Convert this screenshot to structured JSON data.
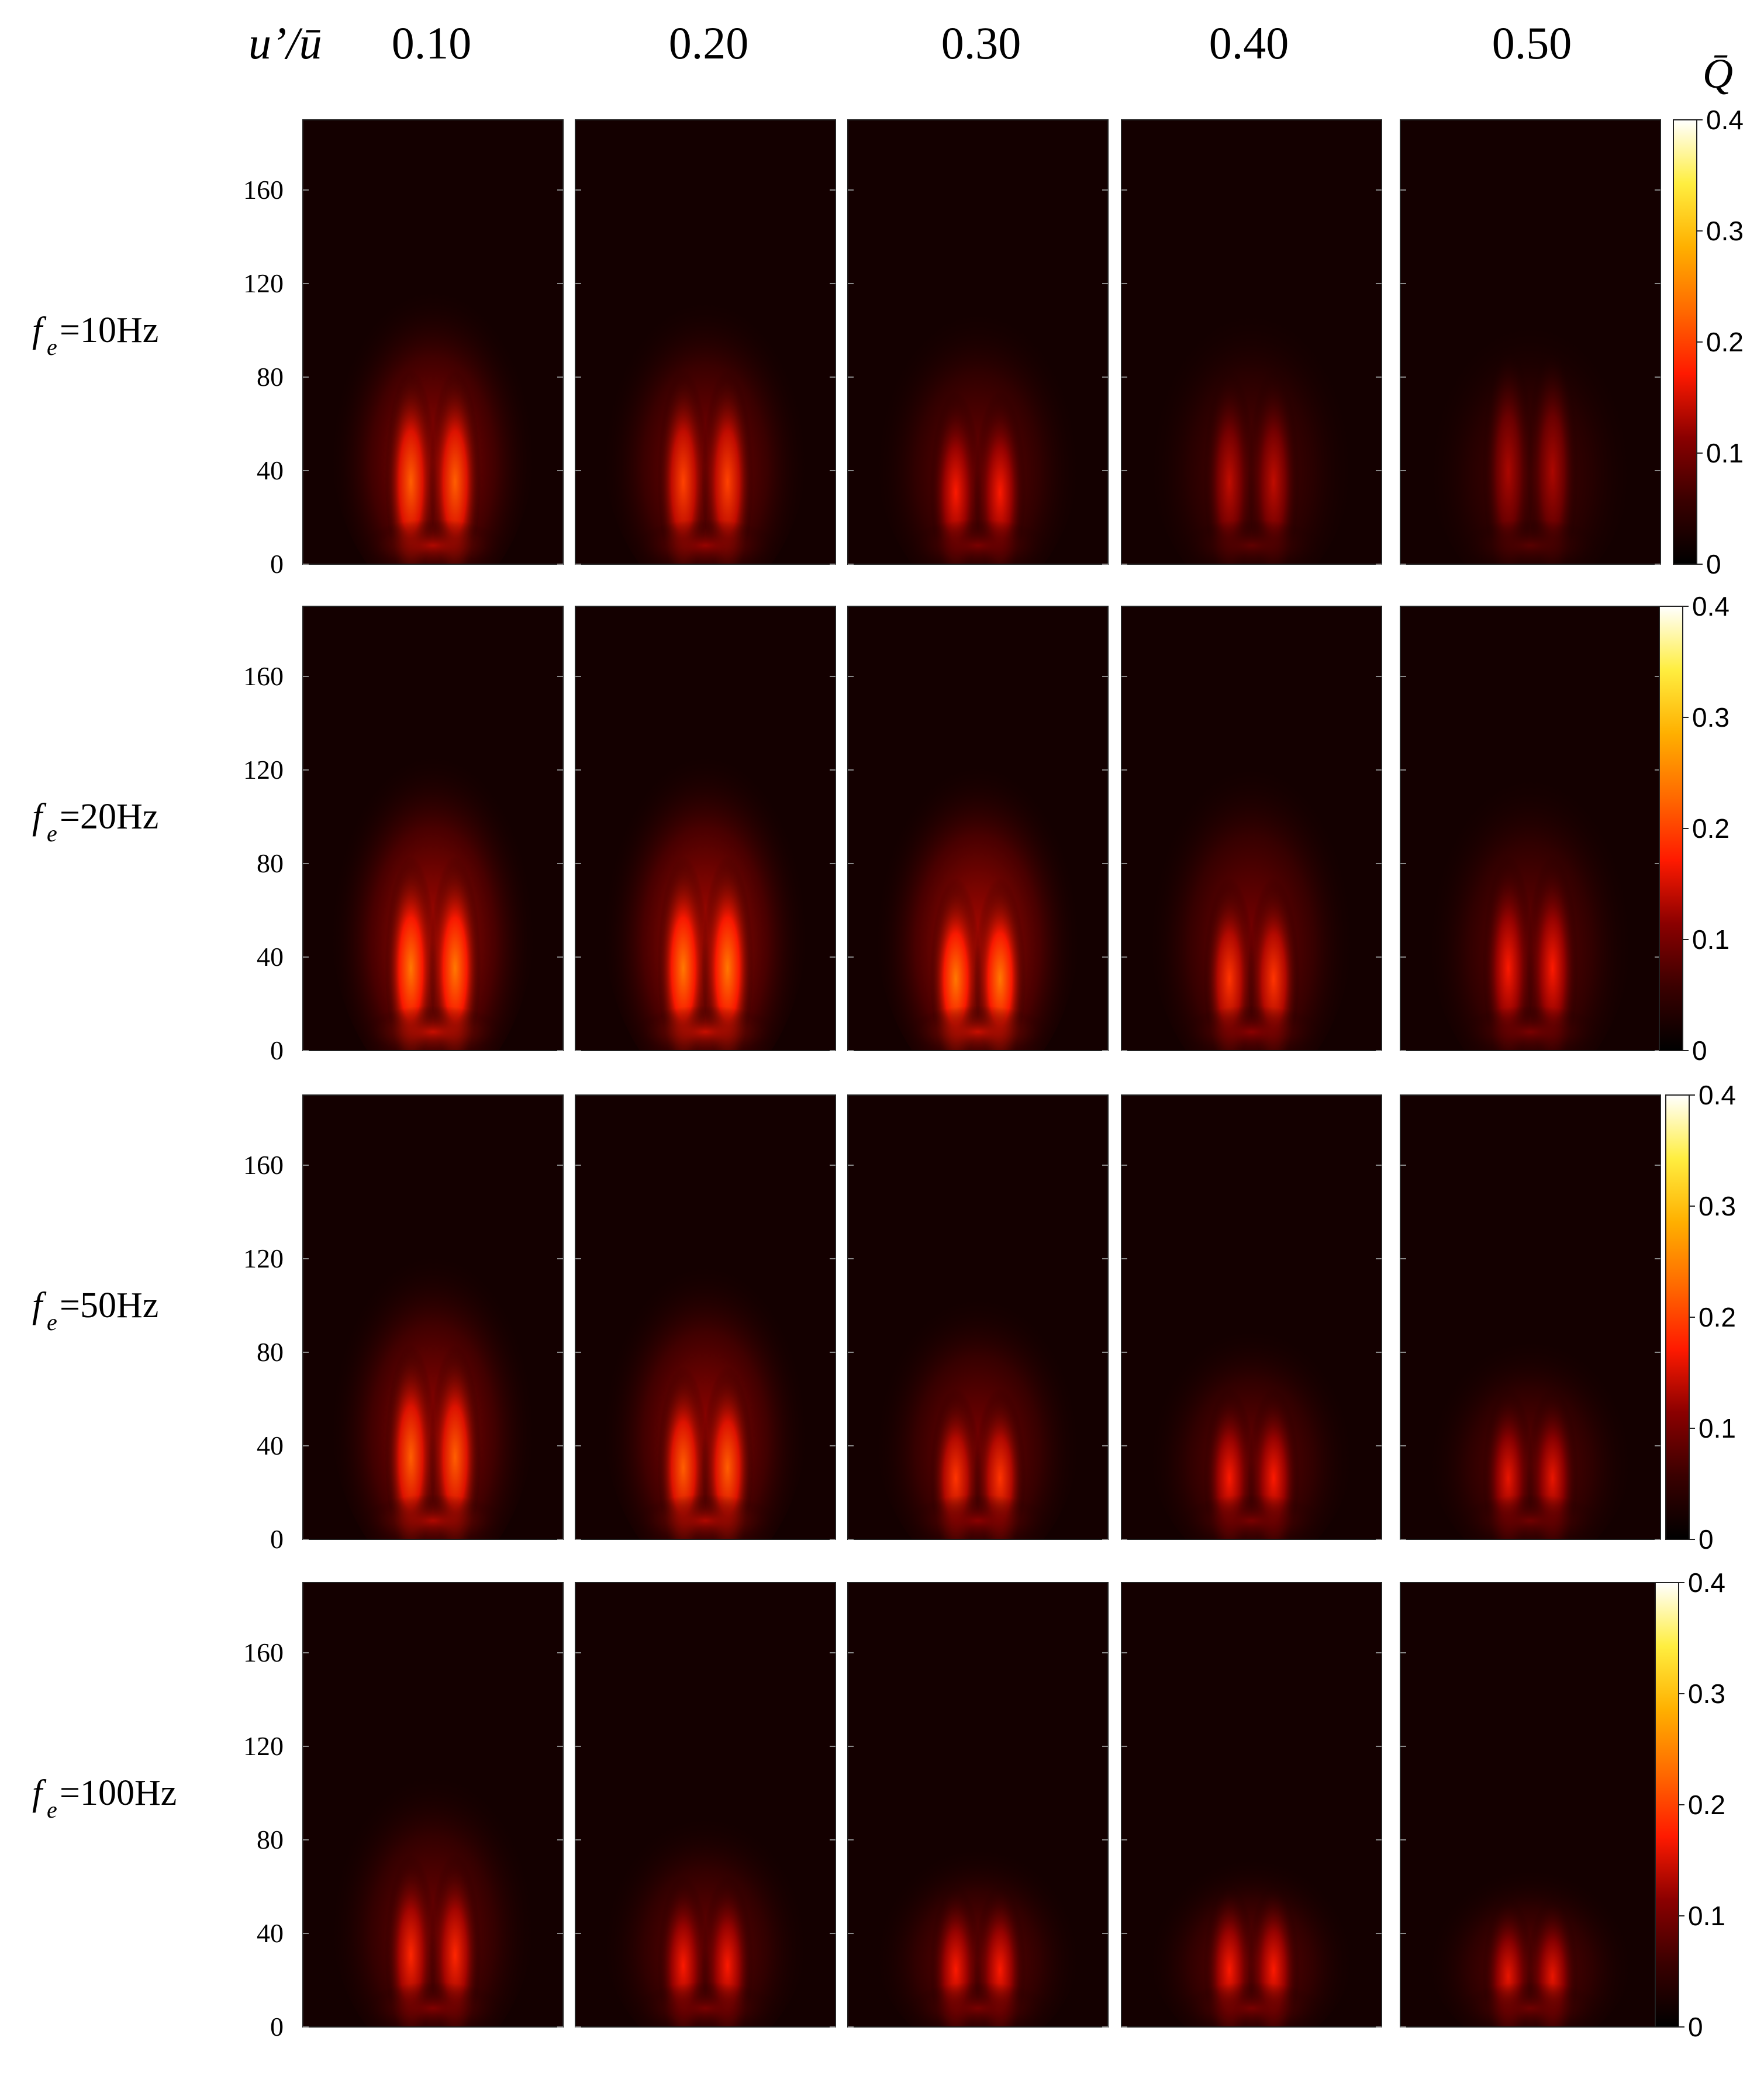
{
  "header": {
    "param_label": "u’/ū",
    "colorbar_title": "Q̄"
  },
  "chart_data": {
    "type": "heatmap",
    "title": "",
    "column_parameter": "u’/ū",
    "columns": [
      "0.10",
      "0.20",
      "0.30",
      "0.40",
      "0.50"
    ],
    "row_labels": [
      {
        "prefix": "f",
        "subscript": "e",
        "value": "=10Hz"
      },
      {
        "prefix": "f",
        "subscript": "e",
        "value": "=20Hz"
      },
      {
        "prefix": "f",
        "subscript": "e",
        "value": "=50Hz"
      },
      {
        "prefix": "f",
        "subscript": "e",
        "value": "=100Hz"
      }
    ],
    "y_axis": {
      "ticks": [
        "0",
        "40",
        "80",
        "120",
        "160"
      ],
      "ylim": [
        0,
        190
      ]
    },
    "colorbar": {
      "label": "Q̄",
      "ticks": [
        "0",
        "0.1",
        "0.2",
        "0.3",
        "0.4"
      ],
      "range": [
        0,
        0.4
      ],
      "colors": [
        "#000000",
        "#3a0000",
        "#8b0000",
        "#ff1a00",
        "#ff6a00",
        "#ffb000",
        "#ffee40",
        "#ffffff"
      ]
    },
    "panels_peak_Q": [
      [
        0.22,
        0.2,
        0.17,
        0.14,
        0.13
      ],
      [
        0.24,
        0.24,
        0.24,
        0.19,
        0.17
      ],
      [
        0.22,
        0.22,
        0.19,
        0.17,
        0.16
      ],
      [
        0.18,
        0.17,
        0.17,
        0.17,
        0.16
      ]
    ],
    "panels_peak_height": [
      [
        40,
        40,
        35,
        40,
        45
      ],
      [
        40,
        40,
        35,
        35,
        40
      ],
      [
        40,
        35,
        30,
        30,
        30
      ],
      [
        35,
        30,
        28,
        28,
        25
      ]
    ],
    "panels_flame_length": [
      [
        130,
        125,
        120,
        120,
        115
      ],
      [
        140,
        140,
        135,
        135,
        130
      ],
      [
        135,
        130,
        115,
        100,
        95
      ],
      [
        120,
        100,
        85,
        80,
        75
      ]
    ]
  }
}
